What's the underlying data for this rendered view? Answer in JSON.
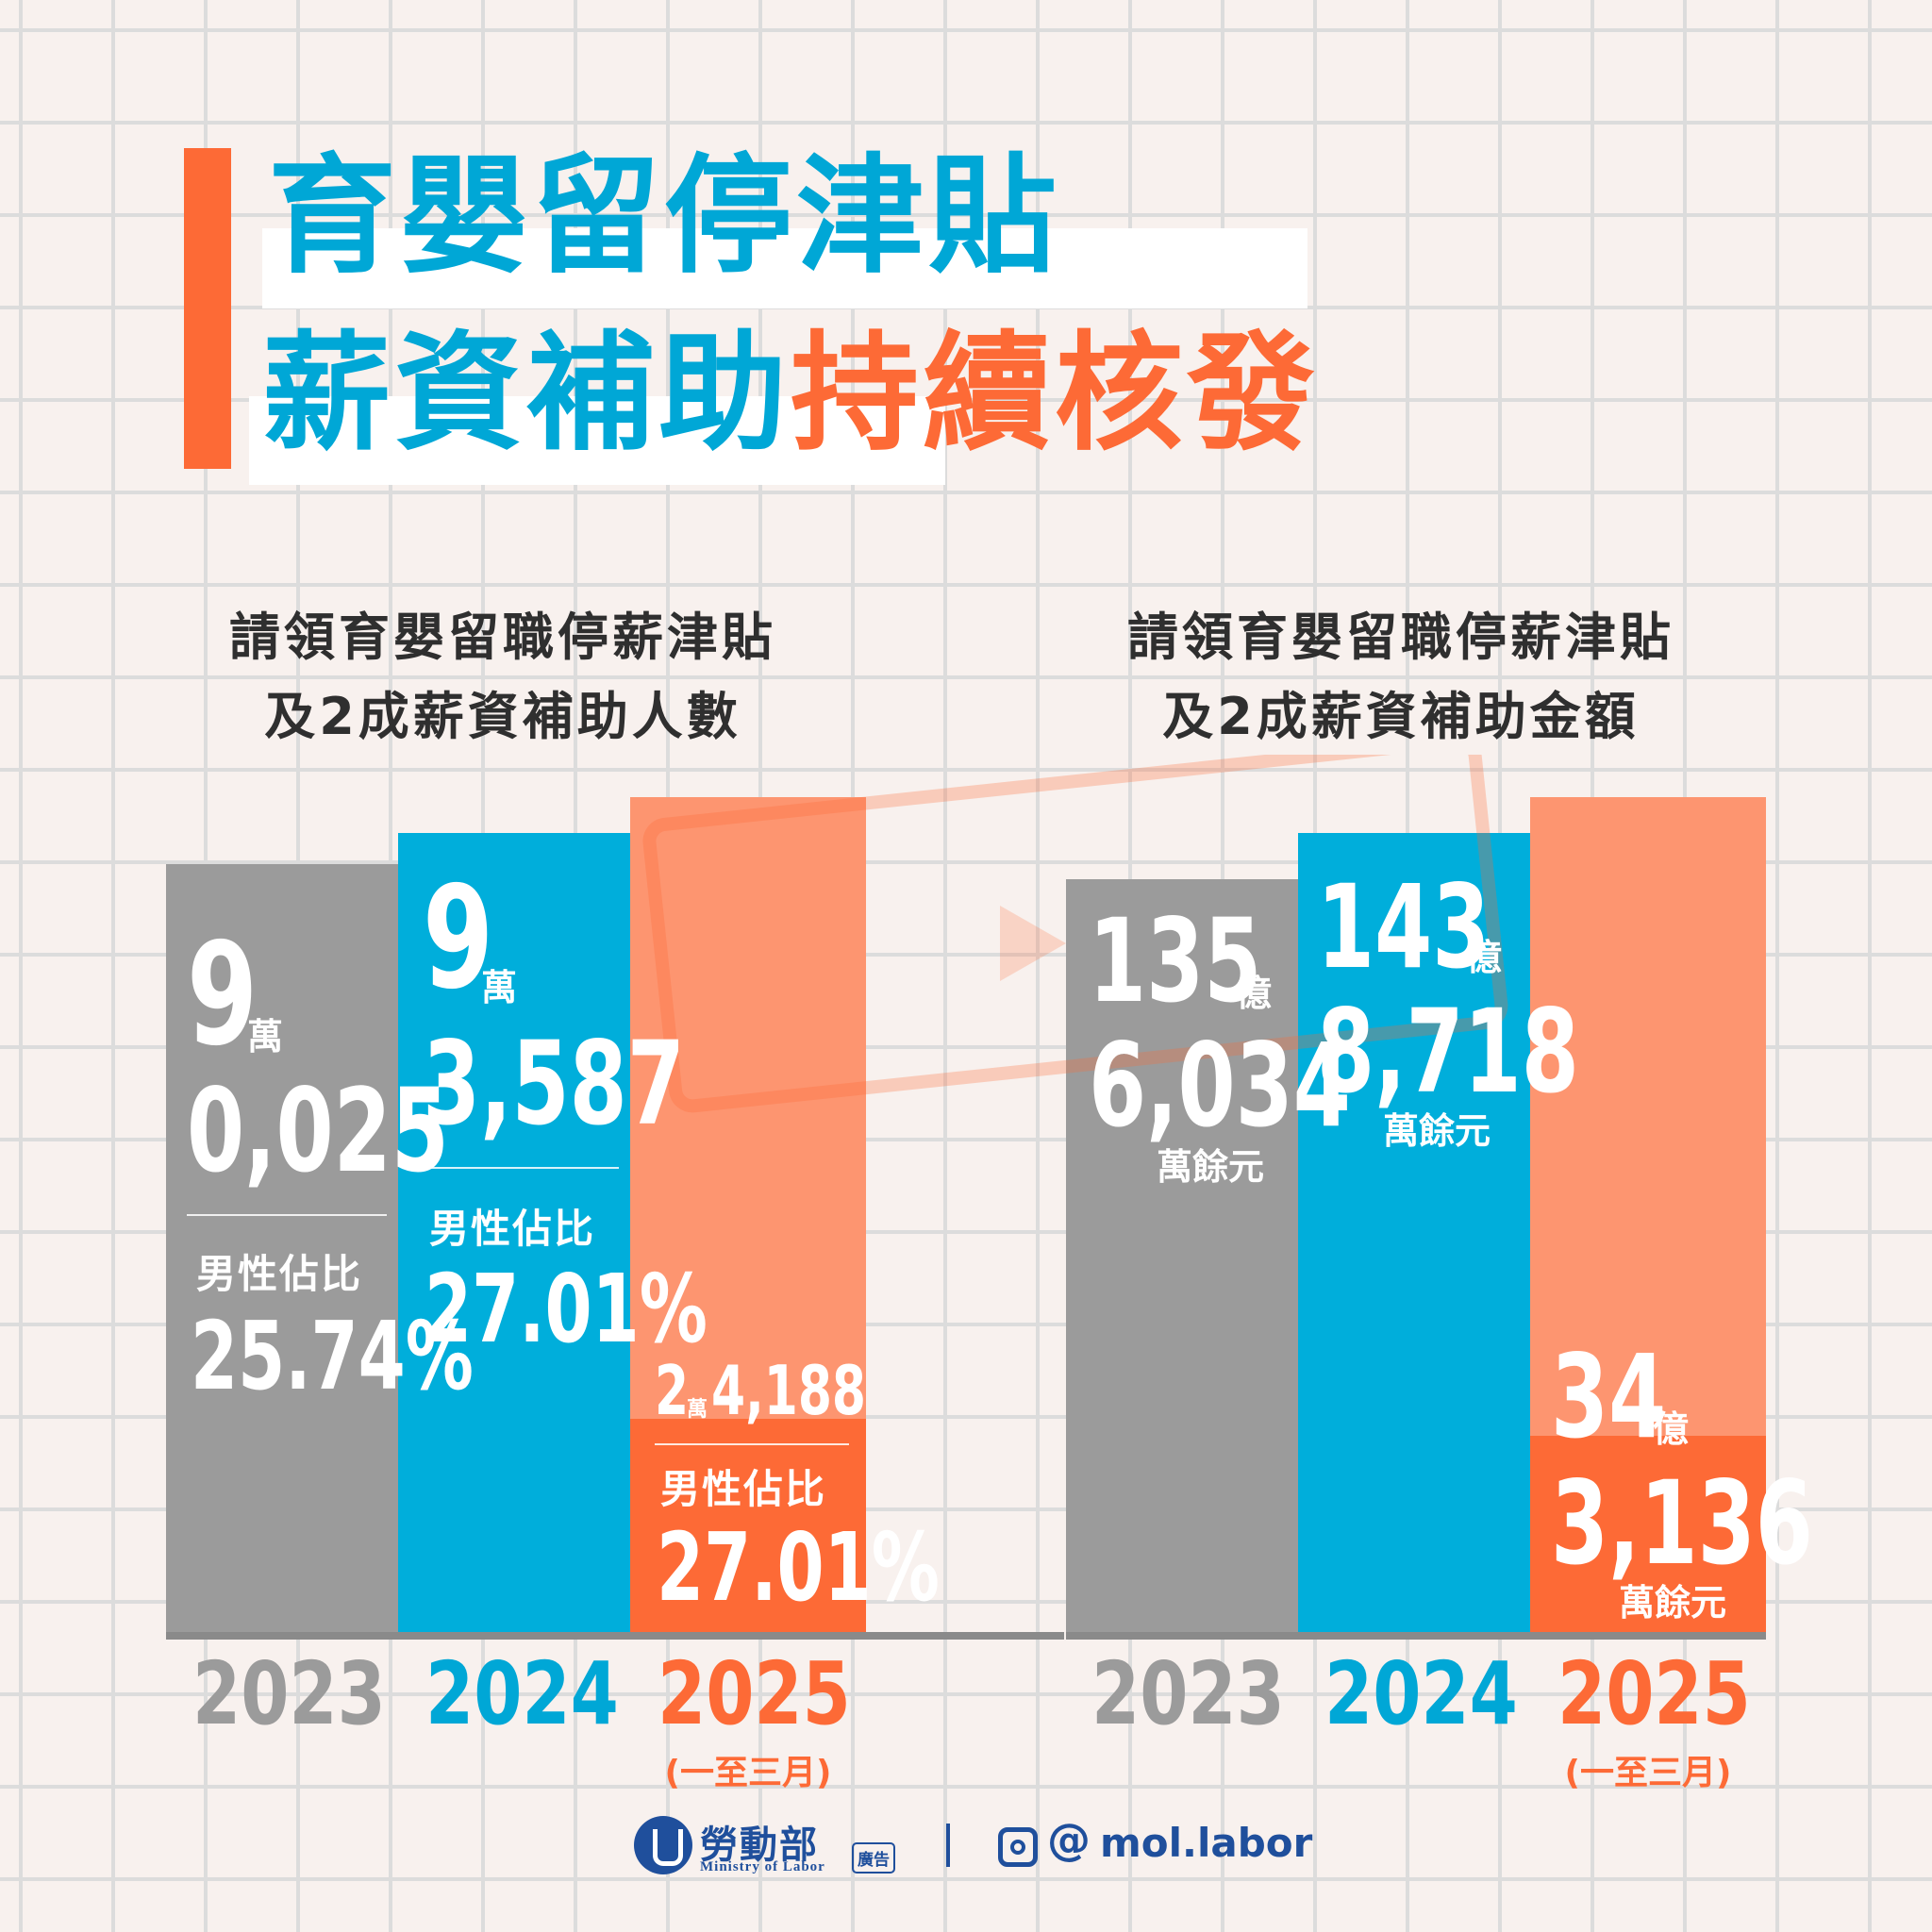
{
  "title": {
    "line1": "育嬰留停津貼",
    "line2_blue": "薪資補助",
    "line2_orange": "持續核發"
  },
  "colors": {
    "gray": "#9b9b9b",
    "blue": "#00aedb",
    "orange": "#fd6a36",
    "orange_light": "#fd9570",
    "bg": "#f8f1ee",
    "navy": "#1f4f9c"
  },
  "chart_data": [
    {
      "type": "bar",
      "title_lines": [
        "請領育嬰留職停薪津貼",
        "及2成薪資補助人數"
      ],
      "categories": [
        "2023",
        "2024",
        "2025"
      ],
      "category_notes": [
        "",
        "",
        "(一至三月)"
      ],
      "values": [
        90025,
        93587,
        24188
      ],
      "male_share_percent": [
        25.74,
        27.01,
        27.01
      ],
      "labels": [
        {
          "top": "9",
          "top_unit": "萬",
          "bottom": "0,025",
          "share_label": "男性佔比",
          "share": "25.74%"
        },
        {
          "top": "9",
          "top_unit": "萬",
          "bottom": "3,587",
          "share_label": "男性佔比",
          "share": "27.01%"
        },
        {
          "top": "2",
          "top_unit": "萬",
          "bottom": "4,188",
          "share_label": "男性佔比",
          "share": "27.01%"
        }
      ]
    },
    {
      "type": "bar",
      "title_lines": [
        "請領育嬰留職停薪津貼",
        "及2成薪資補助金額"
      ],
      "categories": [
        "2023",
        "2024",
        "2025"
      ],
      "category_notes": [
        "",
        "",
        "(一至三月)"
      ],
      "values": [
        13560340000,
        14387180000,
        3431360000
      ],
      "labels": [
        {
          "top": "135",
          "top_unit": "億",
          "bottom": "6,034",
          "unit": "萬餘元"
        },
        {
          "top": "143",
          "top_unit": "億",
          "bottom": "8,718",
          "unit": "萬餘元"
        },
        {
          "top": "34",
          "top_unit": "億",
          "bottom": "3,136",
          "unit": "萬餘元"
        }
      ]
    }
  ],
  "footer": {
    "org_name": "勞動部",
    "org_en": "Ministry of Labor",
    "ad_tag": "廣告",
    "handle": "mol.labor",
    "icons": [
      "ministry-logo-icon",
      "instagram-icon",
      "threads-icon"
    ]
  }
}
